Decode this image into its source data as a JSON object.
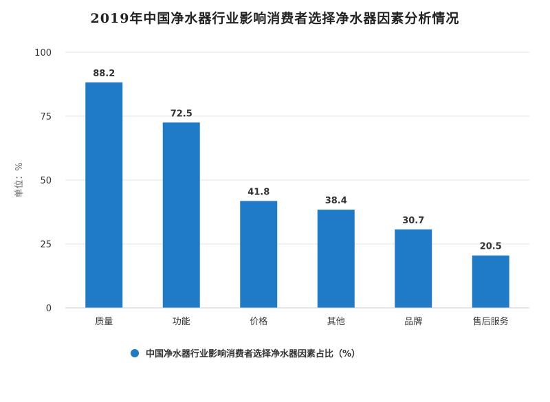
{
  "chart_data": {
    "type": "bar",
    "title": "2019年中国净水器行业影响消费者选择净水器因素分析情况",
    "ylabel": "单位：%",
    "xlabel": "",
    "categories": [
      "质量",
      "功能",
      "价格",
      "其他",
      "品牌",
      "售后服务"
    ],
    "series": [
      {
        "name": "中国净水器行业影响消费者选择净水器因素占比（%）",
        "values": [
          88.2,
          72.5,
          41.8,
          38.4,
          30.7,
          20.5
        ]
      }
    ],
    "ylim": [
      0,
      100
    ],
    "yticks": [
      0,
      25,
      50,
      75,
      100
    ],
    "grid": true,
    "legend_position": "bottom",
    "bar_color": "#1f7bc8"
  }
}
